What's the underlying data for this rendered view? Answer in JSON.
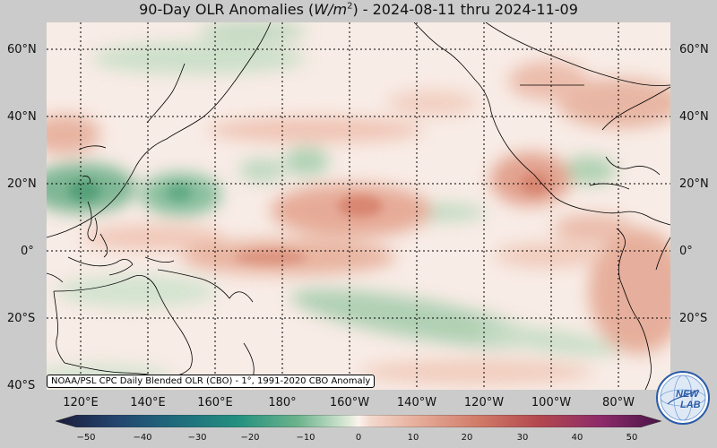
{
  "title": {
    "prefix": "90-Day OLR Anomalies (",
    "unit_base": "W/m",
    "unit_exp": "2",
    "suffix": ") - 2024-08-11 thru 2024-11-09"
  },
  "lat_labels": [
    "60°N",
    "40°N",
    "20°N",
    "0°",
    "20°S",
    "40°S"
  ],
  "lon_labels": [
    "120°E",
    "140°E",
    "160°E",
    "180°",
    "160°W",
    "140°W",
    "120°W",
    "100°W",
    "80°W"
  ],
  "credit": "NOAA/PSL CPC Daily Blended OLR (CBO) - 1°, 1991-2020 CBO Anomaly",
  "colorbar": {
    "ticks": [
      "−50",
      "−40",
      "−30",
      "−20",
      "−10",
      "0",
      "10",
      "20",
      "30",
      "40",
      "50"
    ],
    "colors": [
      "#1b1b3a",
      "#24456e",
      "#1f6b7d",
      "#23907f",
      "#6cb38c",
      "#bcd9bd",
      "#fbf1ec",
      "#eabfae",
      "#d57f6a",
      "#b2474e",
      "#8d2b6a",
      "#4a1447"
    ]
  },
  "logo": {
    "line1": "NEW",
    "line2": "LAB"
  }
}
